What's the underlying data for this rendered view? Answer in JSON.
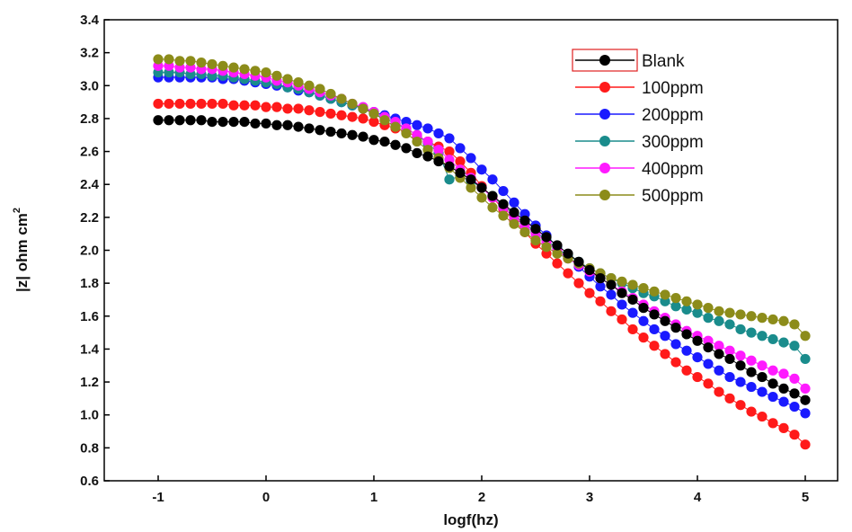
{
  "chart_data": {
    "type": "scatter",
    "title": "",
    "xlabel": "logf(hz)",
    "ylabel": "|z| ohm cm",
    "ylabel_superscript": "2",
    "xlim": [
      -1.5,
      5.3
    ],
    "ylim": [
      0.6,
      3.4
    ],
    "x_ticks": [
      -1,
      0,
      1,
      2,
      3,
      4,
      5
    ],
    "x_tick_labels": [
      "-1",
      "0",
      "1",
      "2",
      "3",
      "4",
      "5"
    ],
    "y_ticks": [
      0.6,
      0.8,
      1.0,
      1.2,
      1.4,
      1.6,
      1.8,
      2.0,
      2.2,
      2.4,
      2.6,
      2.8,
      3.0,
      3.2,
      3.4
    ],
    "y_tick_labels": [
      "0.6",
      "0.8",
      "1.0",
      "1.2",
      "1.4",
      "1.6",
      "1.8",
      "2.0",
      "2.2",
      "2.4",
      "2.6",
      "2.8",
      "3.0",
      "3.2",
      "3.4"
    ],
    "grid": false,
    "legend_position": "top-right",
    "x": [
      -1.0,
      -0.9,
      -0.8,
      -0.7,
      -0.6,
      -0.5,
      -0.4,
      -0.3,
      -0.2,
      -0.1,
      0.0,
      0.1,
      0.2,
      0.3,
      0.4,
      0.5,
      0.6,
      0.7,
      0.8,
      0.9,
      1.0,
      1.1,
      1.2,
      1.3,
      1.4,
      1.5,
      1.6,
      1.7,
      1.8,
      1.9,
      2.0,
      2.1,
      2.2,
      2.3,
      2.4,
      2.5,
      2.6,
      2.7,
      2.8,
      2.9,
      3.0,
      3.1,
      3.2,
      3.3,
      3.4,
      3.5,
      3.6,
      3.7,
      3.8,
      3.9,
      4.0,
      4.1,
      4.2,
      4.3,
      4.4,
      4.5,
      4.6,
      4.7,
      4.8,
      4.9,
      5.0
    ],
    "series": [
      {
        "name": "Blank",
        "color": "#000000",
        "values": [
          2.79,
          2.79,
          2.79,
          2.79,
          2.79,
          2.78,
          2.78,
          2.78,
          2.78,
          2.77,
          2.77,
          2.76,
          2.76,
          2.75,
          2.74,
          2.73,
          2.72,
          2.71,
          2.7,
          2.69,
          2.67,
          2.66,
          2.64,
          2.62,
          2.59,
          2.57,
          2.54,
          2.51,
          2.47,
          2.43,
          2.38,
          2.33,
          2.28,
          2.23,
          2.18,
          2.13,
          2.08,
          2.03,
          1.98,
          1.93,
          1.88,
          1.83,
          1.79,
          1.74,
          1.7,
          1.65,
          1.61,
          1.57,
          1.53,
          1.49,
          1.45,
          1.41,
          1.37,
          1.34,
          1.3,
          1.26,
          1.23,
          1.19,
          1.16,
          1.13,
          1.09
        ]
      },
      {
        "name": "100ppm",
        "color": "#ff1a1a",
        "values": [
          2.89,
          2.89,
          2.89,
          2.89,
          2.89,
          2.89,
          2.89,
          2.88,
          2.88,
          2.88,
          2.87,
          2.87,
          2.86,
          2.86,
          2.85,
          2.84,
          2.83,
          2.82,
          2.81,
          2.8,
          2.78,
          2.76,
          2.74,
          2.72,
          2.69,
          2.66,
          2.63,
          2.6,
          2.54,
          2.47,
          2.39,
          2.32,
          2.25,
          2.18,
          2.11,
          2.04,
          1.98,
          1.92,
          1.86,
          1.8,
          1.74,
          1.69,
          1.63,
          1.58,
          1.52,
          1.47,
          1.42,
          1.37,
          1.32,
          1.27,
          1.23,
          1.19,
          1.14,
          1.1,
          1.06,
          1.02,
          0.99,
          0.95,
          0.92,
          0.88,
          0.82
        ]
      },
      {
        "name": "200ppm",
        "color": "#1a1aff",
        "values": [
          3.05,
          3.05,
          3.05,
          3.05,
          3.05,
          3.05,
          3.04,
          3.04,
          3.03,
          3.02,
          3.01,
          3.0,
          2.99,
          2.97,
          2.96,
          2.94,
          2.92,
          2.9,
          2.88,
          2.86,
          2.84,
          2.82,
          2.8,
          2.78,
          2.76,
          2.74,
          2.71,
          2.68,
          2.62,
          2.56,
          2.49,
          2.43,
          2.36,
          2.29,
          2.22,
          2.15,
          2.09,
          2.02,
          1.96,
          1.9,
          1.84,
          1.78,
          1.73,
          1.67,
          1.62,
          1.57,
          1.52,
          1.48,
          1.43,
          1.39,
          1.35,
          1.31,
          1.27,
          1.23,
          1.2,
          1.17,
          1.14,
          1.11,
          1.08,
          1.05,
          1.01
        ]
      },
      {
        "name": "300ppm",
        "color": "#1a8c8c",
        "values": [
          3.08,
          3.08,
          3.08,
          3.07,
          3.07,
          3.06,
          3.06,
          3.05,
          3.04,
          3.03,
          3.02,
          3.01,
          2.99,
          2.98,
          2.96,
          2.94,
          2.92,
          2.9,
          2.88,
          2.86,
          2.83,
          2.8,
          2.77,
          2.74,
          2.7,
          2.65,
          2.59,
          2.43,
          2.45,
          2.42,
          2.38,
          2.33,
          2.27,
          2.22,
          2.16,
          2.11,
          2.06,
          2.01,
          1.97,
          1.93,
          1.89,
          1.86,
          1.83,
          1.8,
          1.77,
          1.74,
          1.72,
          1.69,
          1.66,
          1.64,
          1.62,
          1.59,
          1.57,
          1.55,
          1.52,
          1.5,
          1.48,
          1.46,
          1.44,
          1.42,
          1.34
        ]
      },
      {
        "name": "400ppm",
        "color": "#ff1aff",
        "values": [
          3.12,
          3.12,
          3.11,
          3.11,
          3.1,
          3.1,
          3.09,
          3.08,
          3.07,
          3.06,
          3.05,
          3.03,
          3.02,
          3.0,
          2.98,
          2.96,
          2.94,
          2.92,
          2.89,
          2.87,
          2.84,
          2.81,
          2.78,
          2.74,
          2.7,
          2.66,
          2.61,
          2.55,
          2.49,
          2.44,
          2.38,
          2.32,
          2.26,
          2.2,
          2.15,
          2.1,
          2.05,
          2.0,
          1.95,
          1.91,
          1.87,
          1.83,
          1.79,
          1.75,
          1.71,
          1.67,
          1.63,
          1.59,
          1.55,
          1.51,
          1.48,
          1.45,
          1.42,
          1.39,
          1.36,
          1.33,
          1.3,
          1.27,
          1.25,
          1.22,
          1.16
        ]
      },
      {
        "name": "500ppm",
        "color": "#8c8c1a",
        "values": [
          3.16,
          3.16,
          3.15,
          3.15,
          3.14,
          3.13,
          3.12,
          3.11,
          3.1,
          3.09,
          3.08,
          3.06,
          3.04,
          3.02,
          3.0,
          2.98,
          2.95,
          2.92,
          2.89,
          2.86,
          2.83,
          2.79,
          2.75,
          2.71,
          2.66,
          2.61,
          2.56,
          2.5,
          2.44,
          2.38,
          2.32,
          2.26,
          2.21,
          2.16,
          2.11,
          2.06,
          2.02,
          1.98,
          1.95,
          1.92,
          1.89,
          1.86,
          1.83,
          1.81,
          1.79,
          1.77,
          1.75,
          1.73,
          1.71,
          1.69,
          1.67,
          1.65,
          1.63,
          1.62,
          1.61,
          1.6,
          1.59,
          1.58,
          1.57,
          1.55,
          1.48
        ]
      }
    ]
  }
}
